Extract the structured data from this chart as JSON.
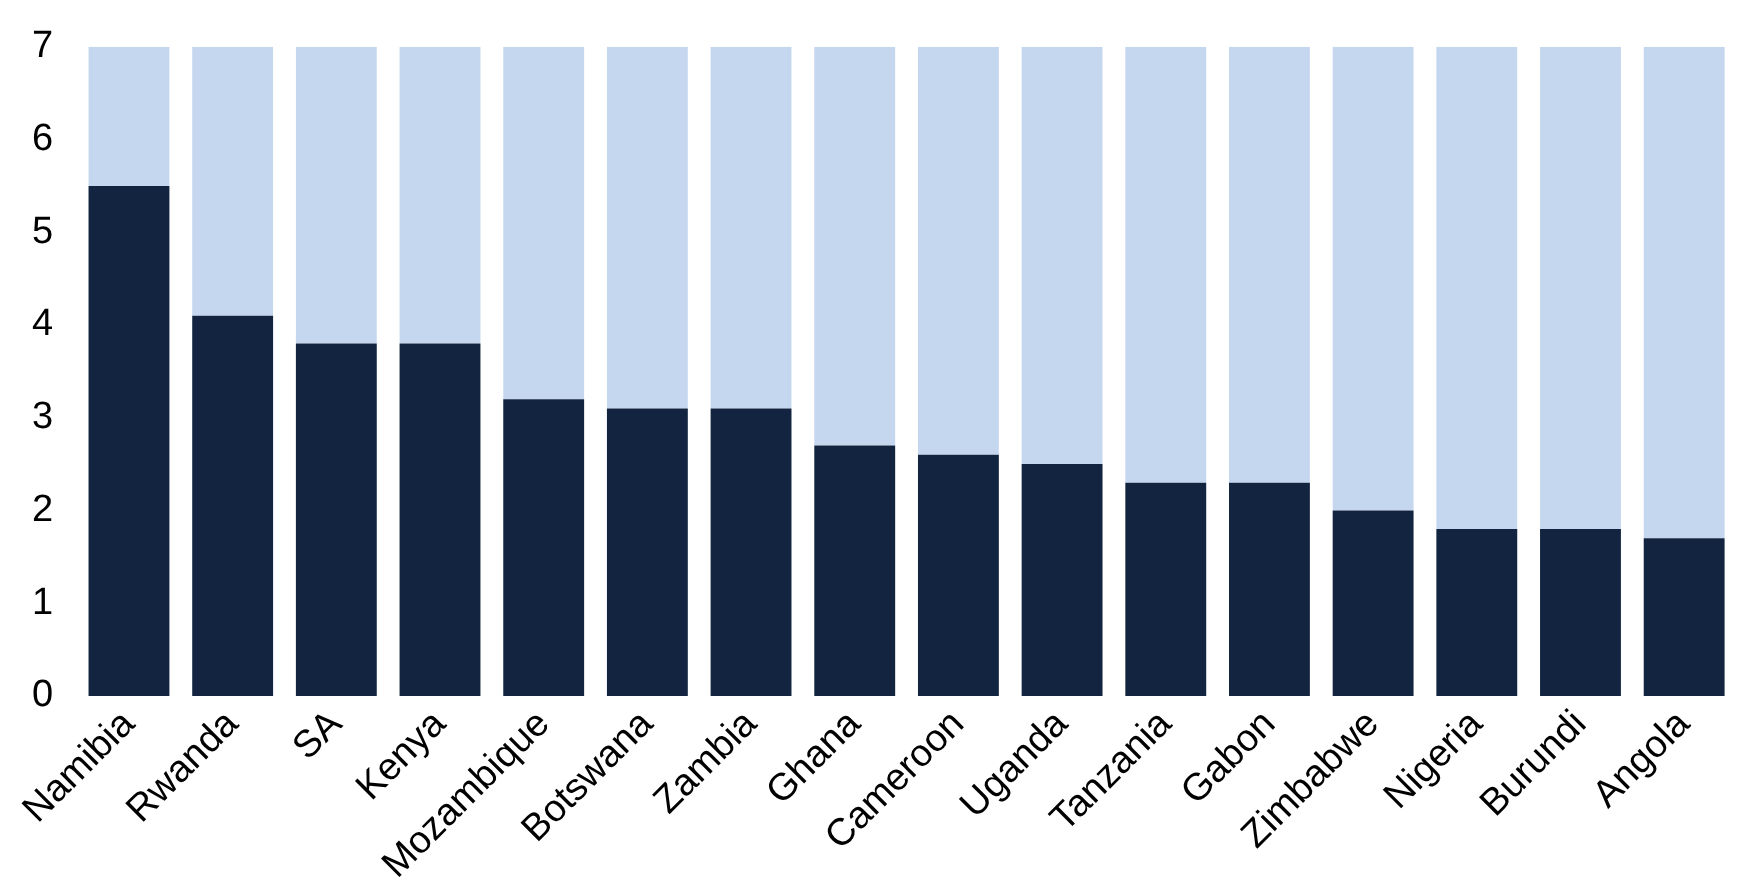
{
  "chart_data": {
    "type": "bar",
    "stacked": true,
    "categories": [
      "Namibia",
      "Rwanda",
      "SA",
      "Kenya",
      "Mozambique",
      "Botswana",
      "Zambia",
      "Ghana",
      "Cameroon",
      "Uganda",
      "Tanzania",
      "Gabon",
      "Zimbabwe",
      "Nigeria",
      "Burundi",
      "Angola"
    ],
    "series": [
      {
        "color": "#12243f",
        "values": [
          5.5,
          4.1,
          3.8,
          3.8,
          3.2,
          3.1,
          3.1,
          2.7,
          2.6,
          2.5,
          2.3,
          2.3,
          2.0,
          1.8,
          1.8,
          1.7
        ]
      },
      {
        "color": "#c5d7ef",
        "values": [
          1.5,
          2.9,
          3.2,
          3.2,
          3.8,
          3.9,
          3.9,
          4.3,
          4.4,
          4.5,
          4.7,
          4.7,
          5.0,
          5.2,
          5.2,
          5.3
        ]
      }
    ],
    "ylim": [
      0,
      7
    ],
    "yticks": [
      0,
      1,
      2,
      3,
      4,
      5,
      6,
      7
    ],
    "grid": false,
    "legend": false
  }
}
